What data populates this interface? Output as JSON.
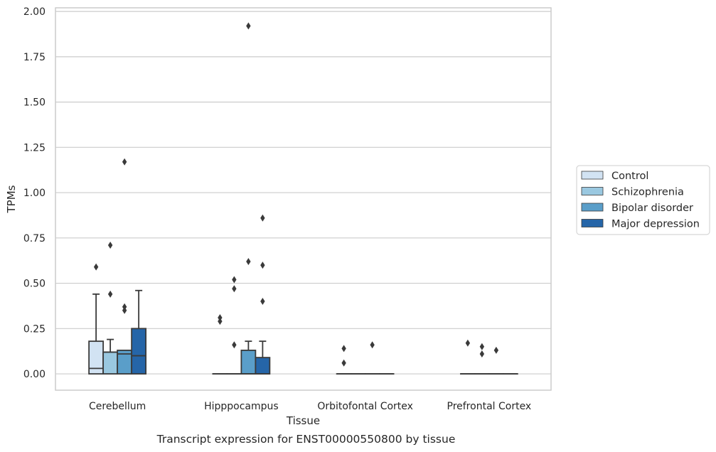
{
  "chart_data": {
    "type": "box",
    "title": "",
    "caption": "Transcript expression for ENST00000550800 by tissue",
    "xlabel": "Tissue",
    "ylabel": "TPMs",
    "ylim": [
      -0.09,
      2.02
    ],
    "yticks": [
      "0.00",
      "0.25",
      "0.50",
      "0.75",
      "1.00",
      "1.25",
      "1.50",
      "1.75",
      "2.00"
    ],
    "ytick_values": [
      0,
      0.25,
      0.5,
      0.75,
      1.0,
      1.25,
      1.5,
      1.75,
      2.0
    ],
    "grid": true,
    "legend_position": "right",
    "categories": [
      "Cerebellum",
      "Hipppocampus",
      "Orbitofontal Cortex",
      "Prefrontal Cortex"
    ],
    "series": [
      {
        "name": "Control",
        "color": "#d2e3f3",
        "boxes": [
          {
            "q1": 0,
            "median": 0.03,
            "q3": 0.18,
            "whisker_low": 0,
            "whisker_high": 0.44,
            "outliers": [
              0.59
            ]
          },
          {
            "q1": 0,
            "median": 0,
            "q3": 0,
            "whisker_low": 0,
            "whisker_high": 0,
            "outliers": [
              0.29,
              0.31
            ]
          },
          {
            "q1": 0,
            "median": 0,
            "q3": 0,
            "whisker_low": 0,
            "whisker_high": 0,
            "outliers": [
              0.06,
              0.14
            ]
          },
          {
            "q1": 0,
            "median": 0,
            "q3": 0,
            "whisker_low": 0,
            "whisker_high": 0,
            "outliers": [
              0.17
            ]
          }
        ]
      },
      {
        "name": "Schizophrenia",
        "color": "#9ac8e0",
        "boxes": [
          {
            "q1": 0,
            "median": 0.12,
            "q3": 0.12,
            "whisker_low": 0,
            "whisker_high": 0.19,
            "outliers": [
              0.44,
              0.71
            ]
          },
          {
            "q1": 0,
            "median": 0,
            "q3": 0,
            "whisker_low": 0,
            "whisker_high": 0,
            "outliers": [
              0.16,
              0.47,
              0.52
            ]
          },
          {
            "q1": 0,
            "median": 0,
            "q3": 0,
            "whisker_low": 0,
            "whisker_high": 0,
            "outliers": []
          },
          {
            "q1": 0,
            "median": 0,
            "q3": 0,
            "whisker_low": 0,
            "whisker_high": 0,
            "outliers": [
              0.11,
              0.15
            ]
          }
        ]
      },
      {
        "name": "Bipolar disorder",
        "color": "#5a9ec9",
        "boxes": [
          {
            "q1": 0,
            "median": 0.11,
            "q3": 0.13,
            "whisker_low": 0,
            "whisker_high": 0.13,
            "outliers": [
              0.35,
              0.37,
              1.17
            ]
          },
          {
            "q1": 0,
            "median": 0,
            "q3": 0.13,
            "whisker_low": 0,
            "whisker_high": 0.18,
            "outliers": [
              0.62,
              1.92
            ]
          },
          {
            "q1": 0,
            "median": 0,
            "q3": 0,
            "whisker_low": 0,
            "whisker_high": 0,
            "outliers": [
              0.16
            ]
          },
          {
            "q1": 0,
            "median": 0,
            "q3": 0,
            "whisker_low": 0,
            "whisker_high": 0,
            "outliers": [
              0.13
            ]
          }
        ]
      },
      {
        "name": "Major depression",
        "color": "#2565a8",
        "boxes": [
          {
            "q1": 0,
            "median": 0.1,
            "q3": 0.25,
            "whisker_low": 0,
            "whisker_high": 0.46,
            "outliers": []
          },
          {
            "q1": 0,
            "median": 0,
            "q3": 0.09,
            "whisker_low": 0,
            "whisker_high": 0.18,
            "outliers": [
              0.4,
              0.6,
              0.86
            ]
          },
          {
            "q1": 0,
            "median": 0,
            "q3": 0,
            "whisker_low": 0,
            "whisker_high": 0,
            "outliers": []
          },
          {
            "q1": 0,
            "median": 0,
            "q3": 0,
            "whisker_low": 0,
            "whisker_high": 0,
            "outliers": []
          }
        ]
      }
    ]
  }
}
